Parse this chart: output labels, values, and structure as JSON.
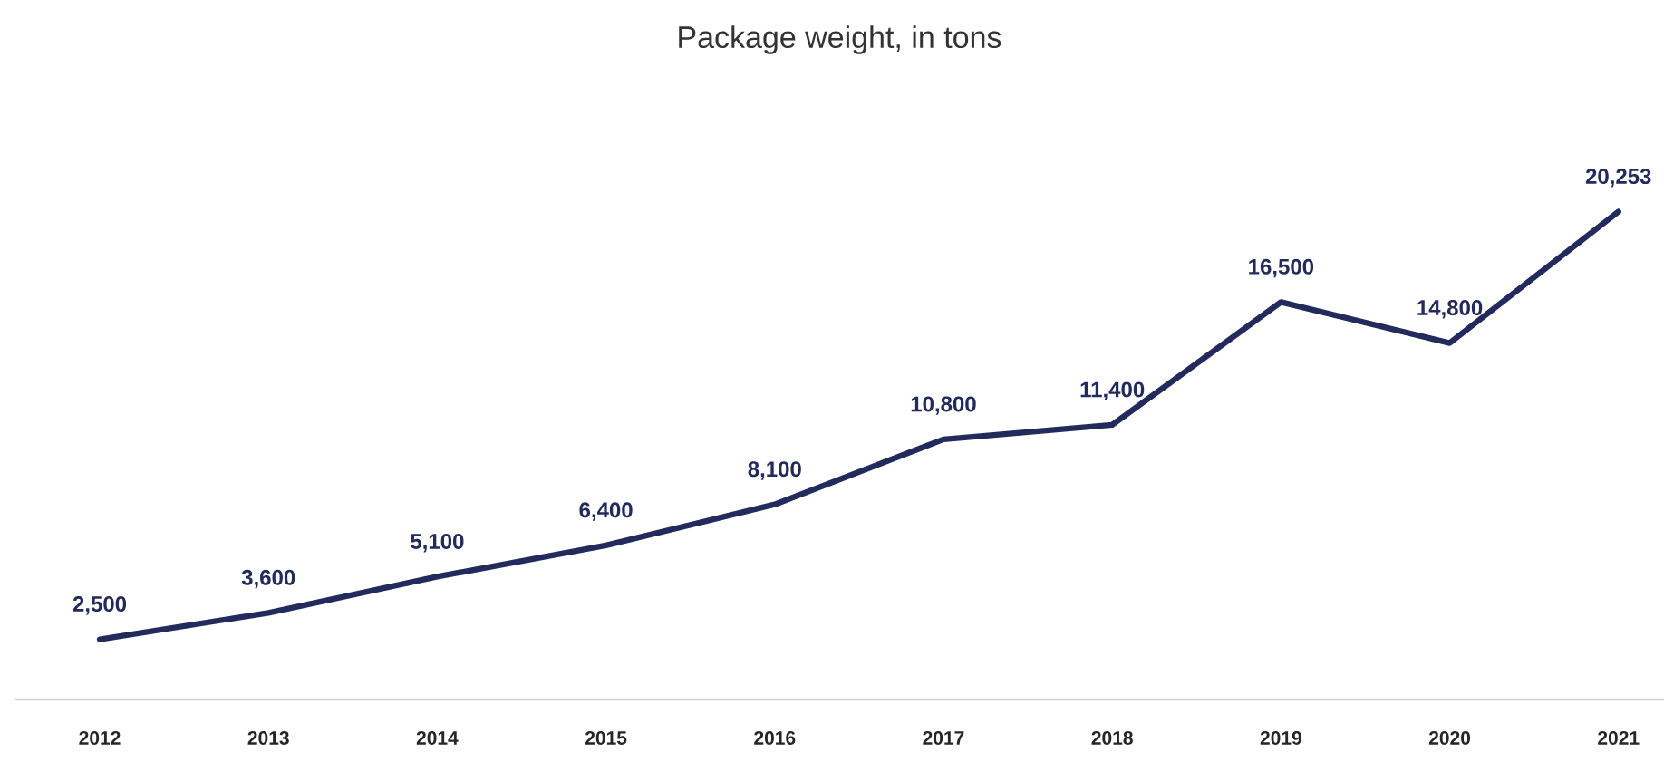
{
  "chart_data": {
    "type": "line",
    "title": "Package weight, in tons",
    "categories": [
      "2012",
      "2013",
      "2014",
      "2015",
      "2016",
      "2017",
      "2018",
      "2019",
      "2020",
      "2021"
    ],
    "series": [
      {
        "color": "#232a5c",
        "values": [
          2500,
          3600,
          5100,
          6400,
          8100,
          10800,
          11400,
          16500,
          14800,
          20253
        ],
        "value_labels": [
          "2,500",
          "3,600",
          "5,100",
          "6,400",
          "8,100",
          "10,800",
          "11,400",
          "16,500",
          "14,800",
          "20,253"
        ]
      }
    ],
    "tick_labels": "x",
    "grid": false,
    "marker": "none",
    "line_style": "solid"
  }
}
